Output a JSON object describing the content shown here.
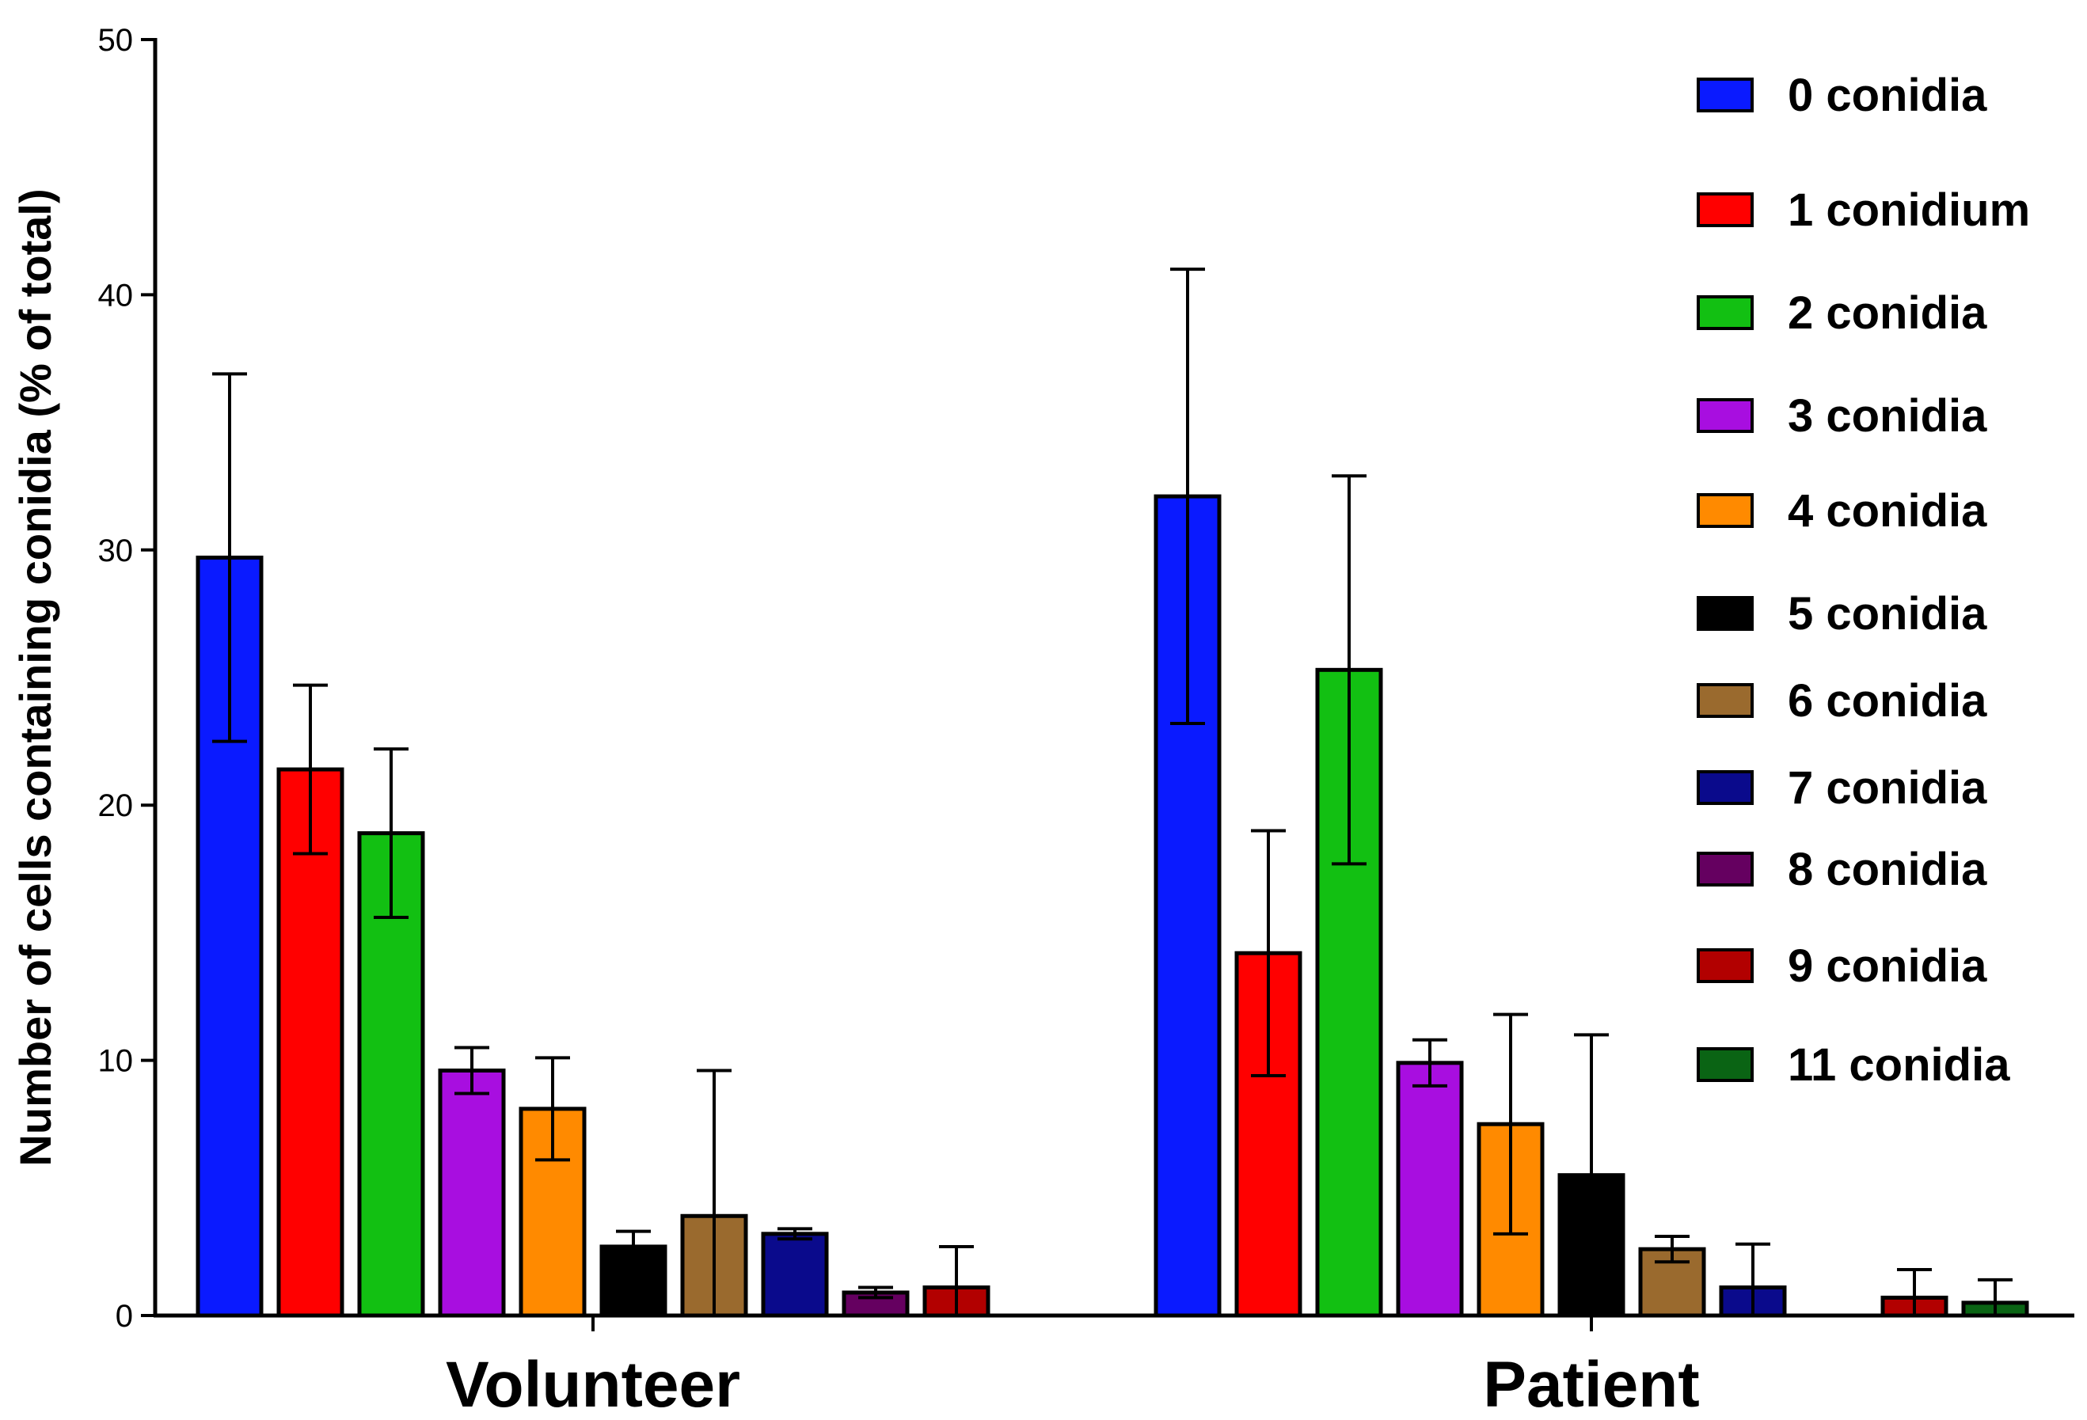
{
  "chart_data": {
    "type": "bar",
    "title": "",
    "xlabel": "",
    "ylabel": "Number of cells containing conidia (% of total)",
    "ylim": [
      0,
      50
    ],
    "yticks": [
      0,
      10,
      20,
      30,
      40,
      50
    ],
    "categories": [
      "Volunteer",
      "Patient"
    ],
    "grid": false,
    "legend_position": "top-right",
    "series": [
      {
        "name": "0 conidia",
        "color": "#0a1aff",
        "values": [
          29.7,
          32.1
        ],
        "errors": [
          7.2,
          8.9
        ]
      },
      {
        "name": "1 conidium",
        "color": "#ff0000",
        "values": [
          21.4,
          14.2
        ],
        "errors": [
          3.3,
          4.8
        ]
      },
      {
        "name": "2 conidia",
        "color": "#12c012",
        "values": [
          18.9,
          25.3
        ],
        "errors": [
          3.3,
          7.6
        ]
      },
      {
        "name": "3 conidia",
        "color": "#a80ee0",
        "values": [
          9.6,
          9.9
        ],
        "errors": [
          0.9,
          0.9
        ]
      },
      {
        "name": "4 conidia",
        "color": "#ff8a00",
        "values": [
          8.1,
          7.5
        ],
        "errors": [
          2.0,
          4.3
        ]
      },
      {
        "name": "5 conidia",
        "color": "#000000",
        "values": [
          2.7,
          5.5
        ],
        "errors": [
          0.6,
          5.5
        ]
      },
      {
        "name": "6 conidia",
        "color": "#9a6a2e",
        "values": [
          3.9,
          2.6
        ],
        "errors": [
          5.7,
          0.5
        ]
      },
      {
        "name": "7 conidia",
        "color": "#0a0a8c",
        "values": [
          3.2,
          1.1
        ],
        "errors": [
          0.2,
          1.7
        ]
      },
      {
        "name": "8 conidia",
        "color": "#650060",
        "values": [
          0.9,
          null
        ],
        "errors": [
          0.2,
          null
        ]
      },
      {
        "name": "9 conidia",
        "color": "#b20000",
        "values": [
          1.1,
          0.7
        ],
        "errors": [
          1.6,
          1.1
        ]
      },
      {
        "name": "11 conidia",
        "color": "#0a6414",
        "values": [
          null,
          0.5
        ],
        "errors": [
          null,
          0.9
        ]
      }
    ]
  }
}
